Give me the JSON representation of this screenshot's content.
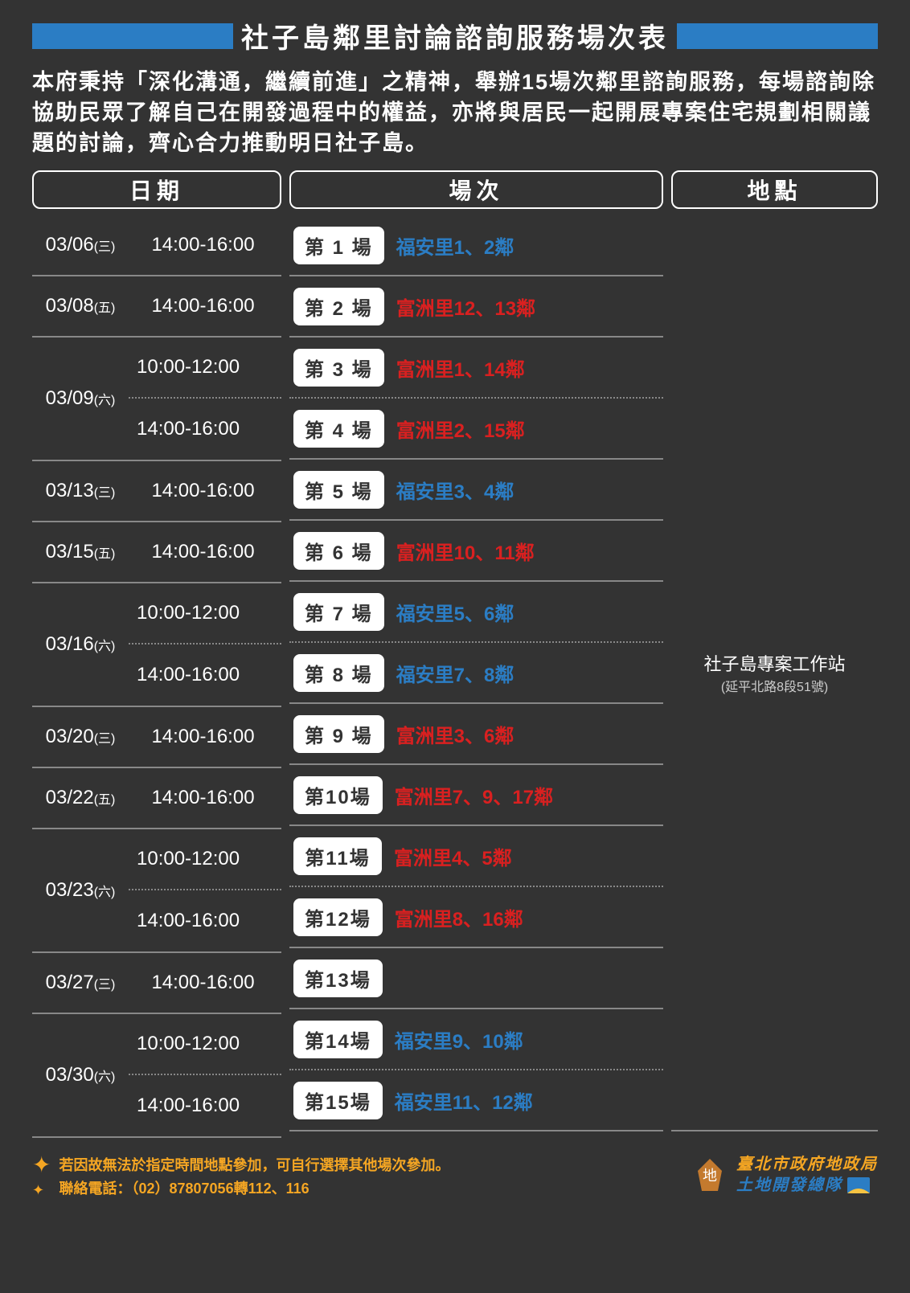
{
  "colors": {
    "bar": "#2b7dc4",
    "blue_text": "#2b7dc4",
    "red_text": "#d92020",
    "star": "#f5a623",
    "footer_text": "#f5a623",
    "org1": "#f5a623",
    "org2": "#2b7dc4"
  },
  "title": "社子島鄰里討論諮詢服務場次表",
  "intro": "本府秉持「深化溝通，繼續前進」之精神，舉辦15場次鄰里諮詢服務，每場諮詢除協助民眾了解自己在開發過程中的權益，亦將與居民一起開展專案住宅規劃相關議題的討論，齊心合力推動明日社子島。",
  "headers": {
    "date": "日期",
    "session": "場次",
    "location": "地點"
  },
  "location": {
    "main": "社子島專案工作站",
    "sub": "(延平北路8段51號)"
  },
  "schedule": [
    {
      "date": "03/06",
      "day": "(三)",
      "times": [
        "14:00-16:00"
      ],
      "sessions": [
        {
          "n": "第 1 場",
          "area": "福安里1、2鄰",
          "c": "blue"
        }
      ]
    },
    {
      "date": "03/08",
      "day": "(五)",
      "times": [
        "14:00-16:00"
      ],
      "sessions": [
        {
          "n": "第 2 場",
          "area": "富洲里12、13鄰",
          "c": "red"
        }
      ]
    },
    {
      "date": "03/09",
      "day": "(六)",
      "times": [
        "10:00-12:00",
        "14:00-16:00"
      ],
      "sessions": [
        {
          "n": "第 3 場",
          "area": "富洲里1、14鄰",
          "c": "red"
        },
        {
          "n": "第 4 場",
          "area": "富洲里2、15鄰",
          "c": "red"
        }
      ]
    },
    {
      "date": "03/13",
      "day": "(三)",
      "times": [
        "14:00-16:00"
      ],
      "sessions": [
        {
          "n": "第 5 場",
          "area": "福安里3、4鄰",
          "c": "blue"
        }
      ]
    },
    {
      "date": "03/15",
      "day": "(五)",
      "times": [
        "14:00-16:00"
      ],
      "sessions": [
        {
          "n": "第 6 場",
          "area": "富洲里10、11鄰",
          "c": "red"
        }
      ]
    },
    {
      "date": "03/16",
      "day": "(六)",
      "times": [
        "10:00-12:00",
        "14:00-16:00"
      ],
      "sessions": [
        {
          "n": "第 7 場",
          "area": "福安里5、6鄰",
          "c": "blue"
        },
        {
          "n": "第 8 場",
          "area": "福安里7、8鄰",
          "c": "blue"
        }
      ]
    },
    {
      "date": "03/20",
      "day": "(三)",
      "times": [
        "14:00-16:00"
      ],
      "sessions": [
        {
          "n": "第 9 場",
          "area": "富洲里3、6鄰",
          "c": "red"
        }
      ]
    },
    {
      "date": "03/22",
      "day": "(五)",
      "times": [
        "14:00-16:00"
      ],
      "sessions": [
        {
          "n": "第10場",
          "area": "富洲里7、9、17鄰",
          "c": "red"
        }
      ]
    },
    {
      "date": "03/23",
      "day": "(六)",
      "times": [
        "10:00-12:00",
        "14:00-16:00"
      ],
      "sessions": [
        {
          "n": "第11場",
          "area": "富洲里4、5鄰",
          "c": "red"
        },
        {
          "n": "第12場",
          "area": "富洲里8、16鄰",
          "c": "red"
        }
      ]
    },
    {
      "date": "03/27",
      "day": "(三)",
      "times": [
        "14:00-16:00"
      ],
      "sessions": [
        {
          "n": "第13場",
          "area": "",
          "c": "blue"
        }
      ]
    },
    {
      "date": "03/30",
      "day": "(六)",
      "times": [
        "10:00-12:00",
        "14:00-16:00"
      ],
      "sessions": [
        {
          "n": "第14場",
          "area": "福安里9、10鄰",
          "c": "blue"
        },
        {
          "n": "第15場",
          "area": "福安里11、12鄰",
          "c": "blue"
        }
      ]
    }
  ],
  "footer": {
    "note": "若因故無法於指定時間地點參加，可自行選擇其他場次參加。",
    "phone_label": "聯絡電話：",
    "phone": "（02）87807056轉112、116",
    "org1": "臺北市政府地政局",
    "org2": "土地開發總隊"
  }
}
